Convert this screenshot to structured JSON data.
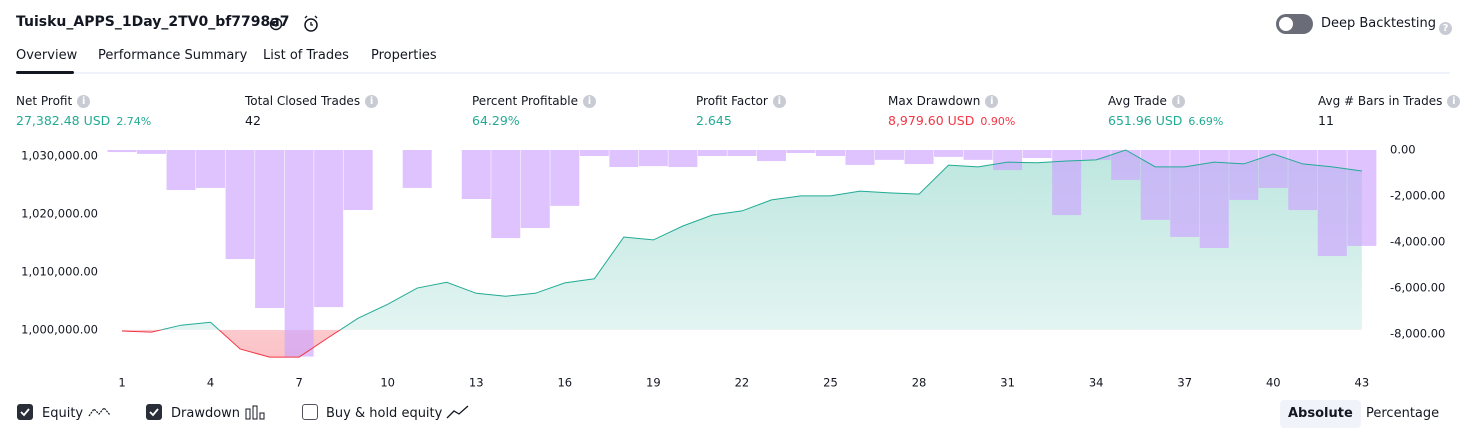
{
  "header": {
    "title": "Tuisku_APPS_1Day_2TV0_bf7798a7",
    "toggle_label": "Deep Backtesting",
    "toggle_on": false
  },
  "tabs": [
    {
      "label": "Overview",
      "active": true
    },
    {
      "label": "Performance Summary",
      "active": false
    },
    {
      "label": "List of Trades",
      "active": false
    },
    {
      "label": "Properties",
      "active": false
    }
  ],
  "metrics": [
    {
      "label": "Net Profit",
      "value": "27,382.48 USD",
      "percent": "2.74%",
      "tone": "positive"
    },
    {
      "label": "Total Closed Trades",
      "value": "42",
      "tone": "neutral"
    },
    {
      "label": "Percent Profitable",
      "value": "64.29%",
      "tone": "positive"
    },
    {
      "label": "Profit Factor",
      "value": "2.645",
      "tone": "positive"
    },
    {
      "label": "Max Drawdown",
      "value": "8,979.60 USD",
      "percent": "0.90%",
      "tone": "negative"
    },
    {
      "label": "Avg Trade",
      "value": "651.96 USD",
      "percent": "6.69%",
      "tone": "positive"
    },
    {
      "label": "Avg # Bars in Trades",
      "value": "11",
      "tone": "neutral"
    }
  ],
  "chart_data": {
    "type": "combo",
    "categories": [
      "1",
      null,
      null,
      "4",
      null,
      null,
      "7",
      null,
      null,
      "10",
      null,
      null,
      "13",
      null,
      null,
      "16",
      null,
      null,
      "19",
      null,
      null,
      "22",
      null,
      null,
      "25",
      null,
      null,
      "28",
      null,
      null,
      "31",
      null,
      null,
      "34",
      null,
      null,
      "37",
      null,
      null,
      "40",
      null,
      null,
      "43"
    ],
    "series": [
      {
        "name": "Equity",
        "type": "line",
        "axis": "y",
        "color": "#22ab94",
        "below_color": "#f23645",
        "checked": true,
        "values": [
          999800,
          999600,
          1000800,
          1001300,
          996700,
          995300,
          995300,
          998700,
          1002000,
          1004400,
          1007200,
          1008200,
          1006300,
          1005800,
          1006300,
          1008100,
          1008800,
          1016000,
          1015500,
          1017900,
          1019800,
          1020500,
          1022400,
          1023100,
          1023100,
          1023900,
          1023600,
          1023400,
          1028400,
          1028100,
          1028900,
          1028800,
          1029100,
          1029300,
          1031000,
          1028100,
          1028100,
          1028900,
          1028600,
          1030300,
          1028600,
          1028100,
          1027382
        ]
      },
      {
        "name": "Drawdown",
        "type": "bar",
        "axis": "y2",
        "color": "#cda3ff",
        "checked": true,
        "values": [
          -90,
          -170,
          -1740,
          -1650,
          -4740,
          -6870,
          -8979.6,
          -6830,
          -2610,
          0,
          -1650,
          0,
          -2130,
          -3830,
          -3390,
          -2430,
          -260,
          -740,
          -700,
          -740,
          -260,
          -260,
          -480,
          -130,
          -260,
          -650,
          -430,
          -610,
          -300,
          -430,
          -870,
          -350,
          -2830,
          -430,
          -1300,
          -3040,
          -3780,
          -4260,
          -2170,
          -1650,
          -2610,
          -4610,
          -4170
        ]
      }
    ],
    "legend_extra": {
      "label": "Buy & hold equity",
      "checked": false
    },
    "ylim": [
      994800,
      1031000
    ],
    "yticks": [
      {
        "value": 1000000,
        "label": "1,000,000.00"
      },
      {
        "value": 1010000,
        "label": "1,010,000.00"
      },
      {
        "value": 1020000,
        "label": "1,020,000.00"
      },
      {
        "value": 1030000,
        "label": "1,030,000.00"
      }
    ],
    "y2lim": [
      -9130,
      0
    ],
    "y2ticks": [
      {
        "value": 0,
        "label": "0.00"
      },
      {
        "value": -2000,
        "label": "-2,000.00"
      },
      {
        "value": -4000,
        "label": "-4,000.00"
      },
      {
        "value": -6000,
        "label": "-6,000.00"
      },
      {
        "value": -8000,
        "label": "-8,000.00"
      }
    ]
  },
  "view_buttons": [
    {
      "label": "Absolute",
      "active": true
    },
    {
      "label": "Percentage",
      "active": false
    }
  ]
}
